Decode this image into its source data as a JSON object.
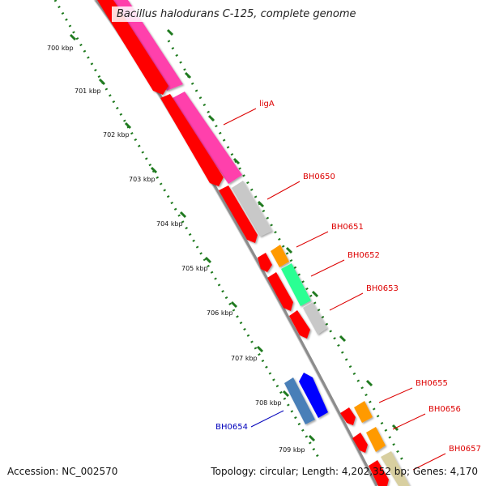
{
  "title": "Bacillus halodurans C-125, complete genome",
  "footer": {
    "accession": "Accession: NC_002570",
    "summary": "Topology: circular; Length: 4,202,352 bp; Genes: 4,170"
  },
  "ticks": [
    "700 kbp",
    "701 kbp",
    "702 kbp",
    "703 kbp",
    "704 kbp",
    "705 kbp",
    "706 kbp",
    "707 kbp",
    "708 kbp",
    "709 kbp"
  ],
  "genes": [
    {
      "label": "ligA",
      "color": "#dd0000"
    },
    {
      "label": "BH0650",
      "color": "#dd0000"
    },
    {
      "label": "BH0651",
      "color": "#dd0000"
    },
    {
      "label": "BH0652",
      "color": "#dd0000"
    },
    {
      "label": "BH0653",
      "color": "#dd0000"
    },
    {
      "label": "BH0654",
      "color": "#0000bb"
    },
    {
      "label": "BH0655",
      "color": "#dd0000"
    },
    {
      "label": "BH0656",
      "color": "#dd0000"
    },
    {
      "label": "BH0657",
      "color": "#dd0000"
    }
  ],
  "colors": {
    "cds_red": "#ff0000",
    "cog_magenta": "#ff3fac",
    "cog_grey": "#c8c8c8",
    "cog_orange": "#ff9a00",
    "cog_green": "#2bff93",
    "cog_tan": "#d8cfa0",
    "rev_blue": "#0000ff",
    "rev_steel": "#4a7fb8",
    "backbone": "#8c8c8c",
    "tick_green": "#1f7a1f"
  }
}
